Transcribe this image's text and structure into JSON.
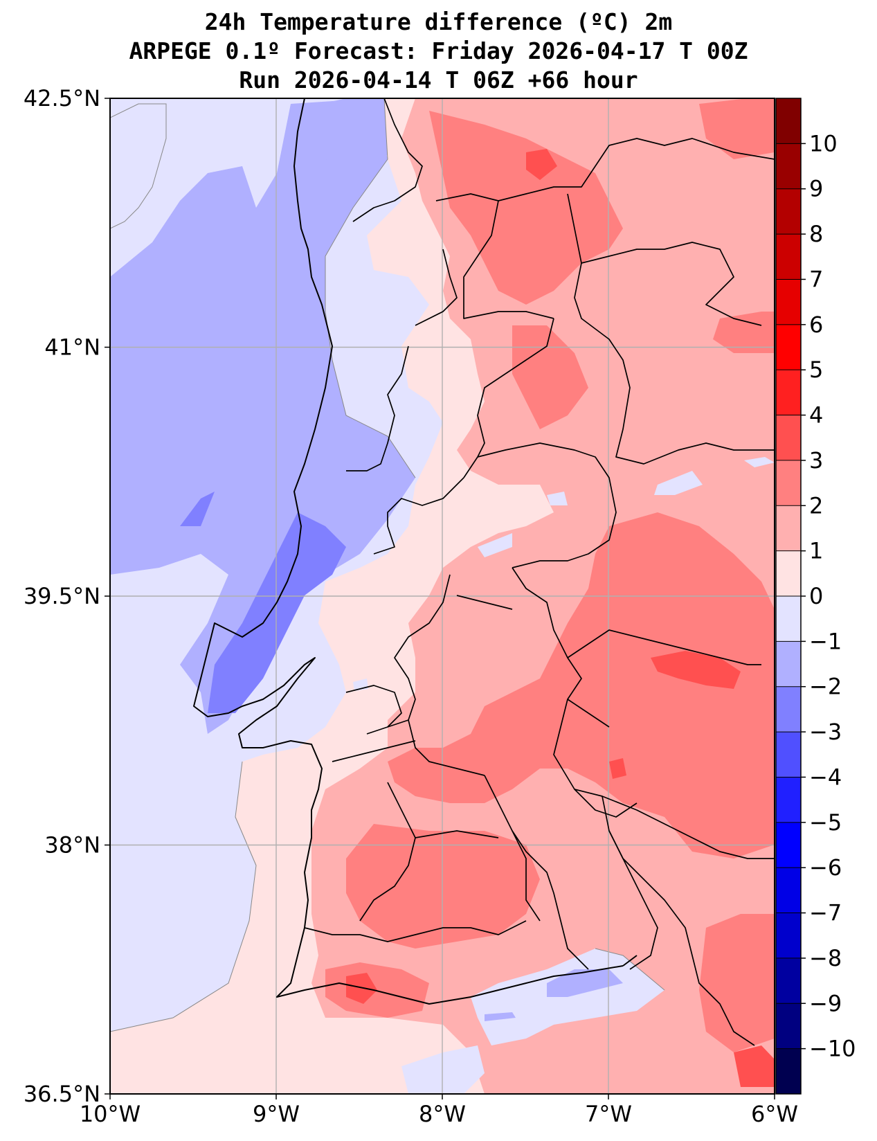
{
  "title": {
    "line1": "24h Temperature difference (ºC) 2m",
    "line2": "ARPEGE 0.1º Forecast: Friday 2026-04-17 T 00Z",
    "line3": "Run 2026-04-14 T 06Z +66 hour"
  },
  "map": {
    "lon_range": [
      -10,
      -6
    ],
    "lat_range": [
      36.5,
      42.5
    ],
    "lon_ticks": [
      {
        "value": -10,
        "label": "10°W"
      },
      {
        "value": -9,
        "label": "9°W"
      },
      {
        "value": -8,
        "label": "8°W"
      },
      {
        "value": -7,
        "label": "7°W"
      },
      {
        "value": -6,
        "label": "6°W"
      }
    ],
    "lat_ticks": [
      {
        "value": 42.5,
        "label": "42.5°N"
      },
      {
        "value": 41,
        "label": "41°N"
      },
      {
        "value": 39.5,
        "label": "39.5°N"
      },
      {
        "value": 38,
        "label": "38°N"
      },
      {
        "value": 36.5,
        "label": "36.5°N"
      }
    ]
  },
  "colorbar": {
    "min": -11,
    "max": 11,
    "ticks": [
      {
        "value": 10,
        "label": "10"
      },
      {
        "value": 9,
        "label": "9"
      },
      {
        "value": 8,
        "label": "8"
      },
      {
        "value": 7,
        "label": "7"
      },
      {
        "value": 6,
        "label": "6"
      },
      {
        "value": 5,
        "label": "5"
      },
      {
        "value": 4,
        "label": "4"
      },
      {
        "value": 3,
        "label": "3"
      },
      {
        "value": 2,
        "label": "2"
      },
      {
        "value": 1,
        "label": "1"
      },
      {
        "value": 0,
        "label": "0"
      },
      {
        "value": -1,
        "label": "−1"
      },
      {
        "value": -2,
        "label": "−2"
      },
      {
        "value": -3,
        "label": "−3"
      },
      {
        "value": -4,
        "label": "−4"
      },
      {
        "value": -5,
        "label": "−5"
      },
      {
        "value": -6,
        "label": "−6"
      },
      {
        "value": -7,
        "label": "−7"
      },
      {
        "value": -8,
        "label": "−8"
      },
      {
        "value": -9,
        "label": "−9"
      },
      {
        "value": -10,
        "label": "−10"
      }
    ],
    "levels": [
      {
        "from": 10,
        "to": 11,
        "color": "#800000"
      },
      {
        "from": 9,
        "to": 10,
        "color": "#990000"
      },
      {
        "from": 8,
        "to": 9,
        "color": "#b30000"
      },
      {
        "from": 7,
        "to": 8,
        "color": "#cc0000"
      },
      {
        "from": 6,
        "to": 7,
        "color": "#e60000"
      },
      {
        "from": 5,
        "to": 6,
        "color": "#ff0000"
      },
      {
        "from": 4,
        "to": 5,
        "color": "#ff2020"
      },
      {
        "from": 3,
        "to": 4,
        "color": "#ff5050"
      },
      {
        "from": 2,
        "to": 3,
        "color": "#ff8080"
      },
      {
        "from": 1,
        "to": 2,
        "color": "#ffb0b0"
      },
      {
        "from": 0,
        "to": 1,
        "color": "#ffe3e3"
      },
      {
        "from": -1,
        "to": 0,
        "color": "#e3e3ff"
      },
      {
        "from": -2,
        "to": -1,
        "color": "#b0b0ff"
      },
      {
        "from": -3,
        "to": -2,
        "color": "#8080ff"
      },
      {
        "from": -4,
        "to": -3,
        "color": "#5050ff"
      },
      {
        "from": -5,
        "to": -4,
        "color": "#2020ff"
      },
      {
        "from": -6,
        "to": -5,
        "color": "#0000ff"
      },
      {
        "from": -7,
        "to": -6,
        "color": "#0000e6"
      },
      {
        "from": -8,
        "to": -7,
        "color": "#0000cc"
      },
      {
        "from": -9,
        "to": -8,
        "color": "#0000a0"
      },
      {
        "from": -10,
        "to": -9,
        "color": "#000080"
      },
      {
        "from": -11,
        "to": -10,
        "color": "#000050"
      }
    ]
  }
}
